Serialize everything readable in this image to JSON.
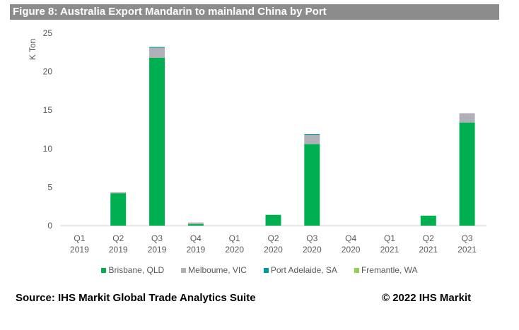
{
  "chart_data": {
    "type": "bar",
    "stacked": true,
    "title": "Figure 8: Australia Export Mandarin to mainland China by Port",
    "ylabel": "K Ton",
    "xlabel": "",
    "ylim": [
      0,
      25
    ],
    "yticks": [
      0,
      5,
      10,
      15,
      20,
      25
    ],
    "categories": [
      [
        "Q1",
        "2019"
      ],
      [
        "Q2",
        "2019"
      ],
      [
        "Q3",
        "2019"
      ],
      [
        "Q4",
        "2019"
      ],
      [
        "Q1",
        "2020"
      ],
      [
        "Q2",
        "2020"
      ],
      [
        "Q3",
        "2020"
      ],
      [
        "Q4",
        "2020"
      ],
      [
        "Q1",
        "2021"
      ],
      [
        "Q2",
        "2021"
      ],
      [
        "Q3",
        "2021"
      ]
    ],
    "series": [
      {
        "name": "Brisbane, QLD",
        "color": "#00b050",
        "values": [
          0,
          4.2,
          21.8,
          0.2,
          0,
          1.4,
          10.6,
          0,
          0,
          1.3,
          13.4
        ]
      },
      {
        "name": "Melboume, VIC",
        "color": "#b0b0b8",
        "values": [
          0,
          0.15,
          1.3,
          0.2,
          0,
          0,
          1.2,
          0,
          0,
          0,
          1.2
        ]
      },
      {
        "name": "Port Adelaide, SA",
        "color": "#009999",
        "values": [
          0,
          0,
          0.1,
          0,
          0,
          0,
          0.1,
          0,
          0,
          0,
          0
        ]
      },
      {
        "name": "Fremantle, WA",
        "color": "#92d050",
        "values": [
          0,
          0,
          0,
          0,
          0,
          0,
          0,
          0,
          0,
          0,
          0
        ]
      }
    ],
    "legend": "bottom"
  },
  "footer": {
    "source": "Source: IHS Markit Global Trade Analytics Suite",
    "copyright": "© 2022 IHS Markit"
  }
}
